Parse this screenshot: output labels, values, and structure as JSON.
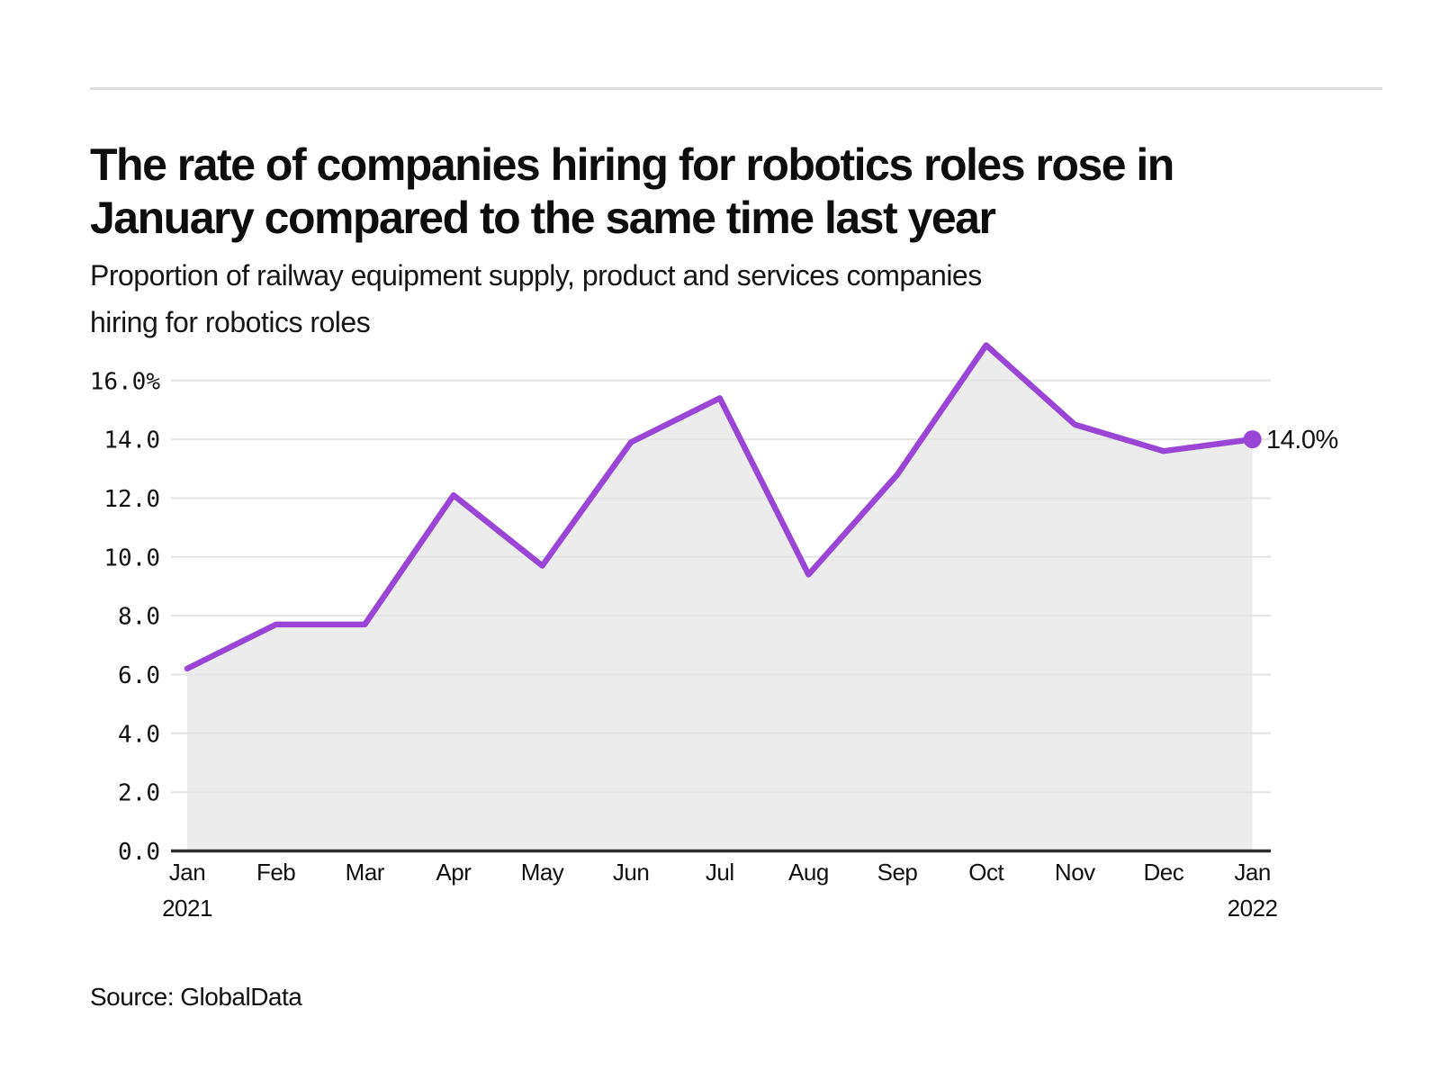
{
  "header": {
    "title_lines": [
      "The rate of companies hiring for robotics roles rose in",
      "January compared to the same time last year"
    ],
    "subtitle_lines": [
      "Proportion of railway equipment supply, product and services companies",
      "hiring for robotics roles"
    ]
  },
  "chart_data": {
    "type": "line",
    "title": "The rate of companies hiring for robotics roles rose in January compared to the same time last year",
    "subtitle": "Proportion of railway equipment supply, product and services companies hiring for robotics roles",
    "categories": [
      "Jan 2021",
      "Feb",
      "Mar",
      "Apr",
      "May",
      "Jun",
      "Jul",
      "Aug",
      "Sep",
      "Oct",
      "Nov",
      "Dec",
      "Jan 2022"
    ],
    "values": [
      6.2,
      7.7,
      7.7,
      12.1,
      9.7,
      13.9,
      15.4,
      9.4,
      12.8,
      17.2,
      14.5,
      13.6,
      14.0
    ],
    "x_tick_labels": [
      {
        "label": "Jan",
        "sub": "2021"
      },
      {
        "label": "Feb"
      },
      {
        "label": "Mar"
      },
      {
        "label": "Apr"
      },
      {
        "label": "May"
      },
      {
        "label": "Jun"
      },
      {
        "label": "Jul"
      },
      {
        "label": "Aug"
      },
      {
        "label": "Sep"
      },
      {
        "label": "Oct"
      },
      {
        "label": "Nov"
      },
      {
        "label": "Dec"
      },
      {
        "label": "Jan",
        "sub": "2022"
      }
    ],
    "y_ticks": [
      {
        "value": 16,
        "label": "16.0%"
      },
      {
        "value": 14,
        "label": "14.0"
      },
      {
        "value": 12,
        "label": "12.0"
      },
      {
        "value": 10,
        "label": "10.0"
      },
      {
        "value": 8,
        "label": "8.0"
      },
      {
        "value": 6,
        "label": "6.0"
      },
      {
        "value": 4,
        "label": "4.0"
      },
      {
        "value": 2,
        "label": "2.0"
      },
      {
        "value": 0,
        "label": "0.0"
      }
    ],
    "end_point_label": "14.0%",
    "xlabel": "",
    "ylabel": "",
    "ylim": [
      0,
      17.9
    ],
    "grid": true,
    "legend_position": "none",
    "area_fill": true,
    "colors": {
      "line": "#9b45d6",
      "fill": "#ececec",
      "gridline": "#e3e3e3",
      "axis": "#2d2d2d",
      "text": "#111111"
    }
  },
  "footer": {
    "source": "Source: GlobalData"
  }
}
